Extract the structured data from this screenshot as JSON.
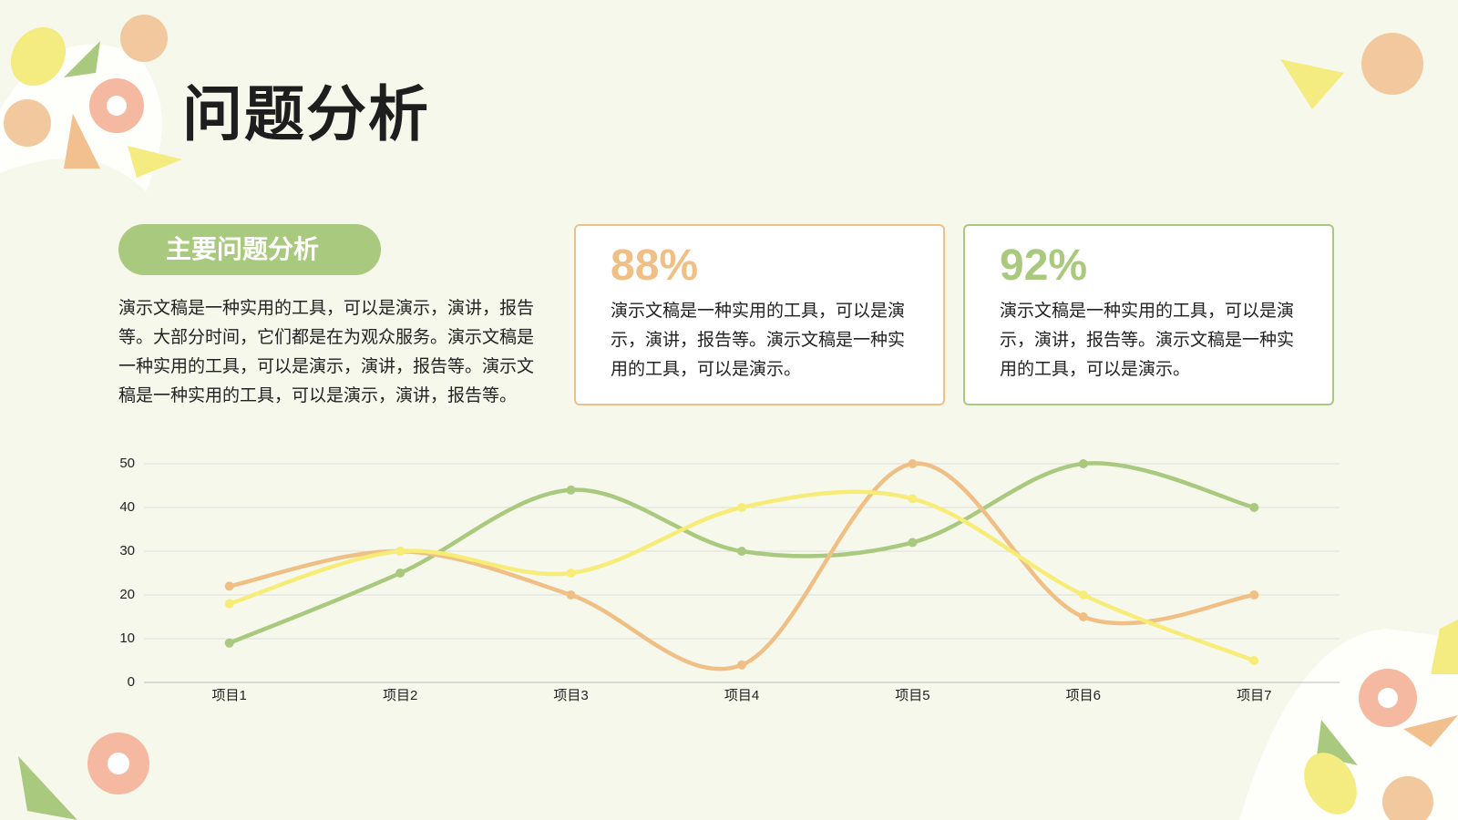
{
  "title": "问题分析",
  "section": {
    "label": "主要问题分析",
    "text": "演示文稿是一种实用的工具，可以是演示，演讲，报告等。大部分时间，它们都是在为观众服务。演示文稿是一种实用的工具，可以是演示，演讲，报告等。演示文稿是一种实用的工具，可以是演示，演讲，报告等。"
  },
  "cards": [
    {
      "value": "88%",
      "color": "#f0bf86",
      "text": "演示文稿是一种实用的工具，可以是演示，演讲，报告等。演示文稿是一种实用的工具，可以是演示。"
    },
    {
      "value": "92%",
      "color": "#a9c97f",
      "text": "演示文稿是一种实用的工具，可以是演示，演讲，报告等。演示文稿是一种实用的工具，可以是演示。"
    }
  ],
  "chart_data": {
    "type": "line",
    "smooth": true,
    "grid": true,
    "categories": [
      "项目1",
      "项目2",
      "项目3",
      "项目4",
      "项目5",
      "项目6",
      "项目7"
    ],
    "series": [
      {
        "color": "#a9c97f",
        "values": [
          9,
          25,
          44,
          30,
          32,
          50,
          40
        ]
      },
      {
        "color": "#f0bf86",
        "values": [
          22,
          30,
          20,
          4,
          50,
          15,
          20
        ]
      },
      {
        "color": "#f7ec78",
        "values": [
          18,
          30,
          25,
          40,
          42,
          20,
          5
        ]
      }
    ],
    "ylim": [
      0,
      50
    ],
    "yticks": [
      0,
      10,
      20,
      30,
      40,
      50
    ]
  }
}
